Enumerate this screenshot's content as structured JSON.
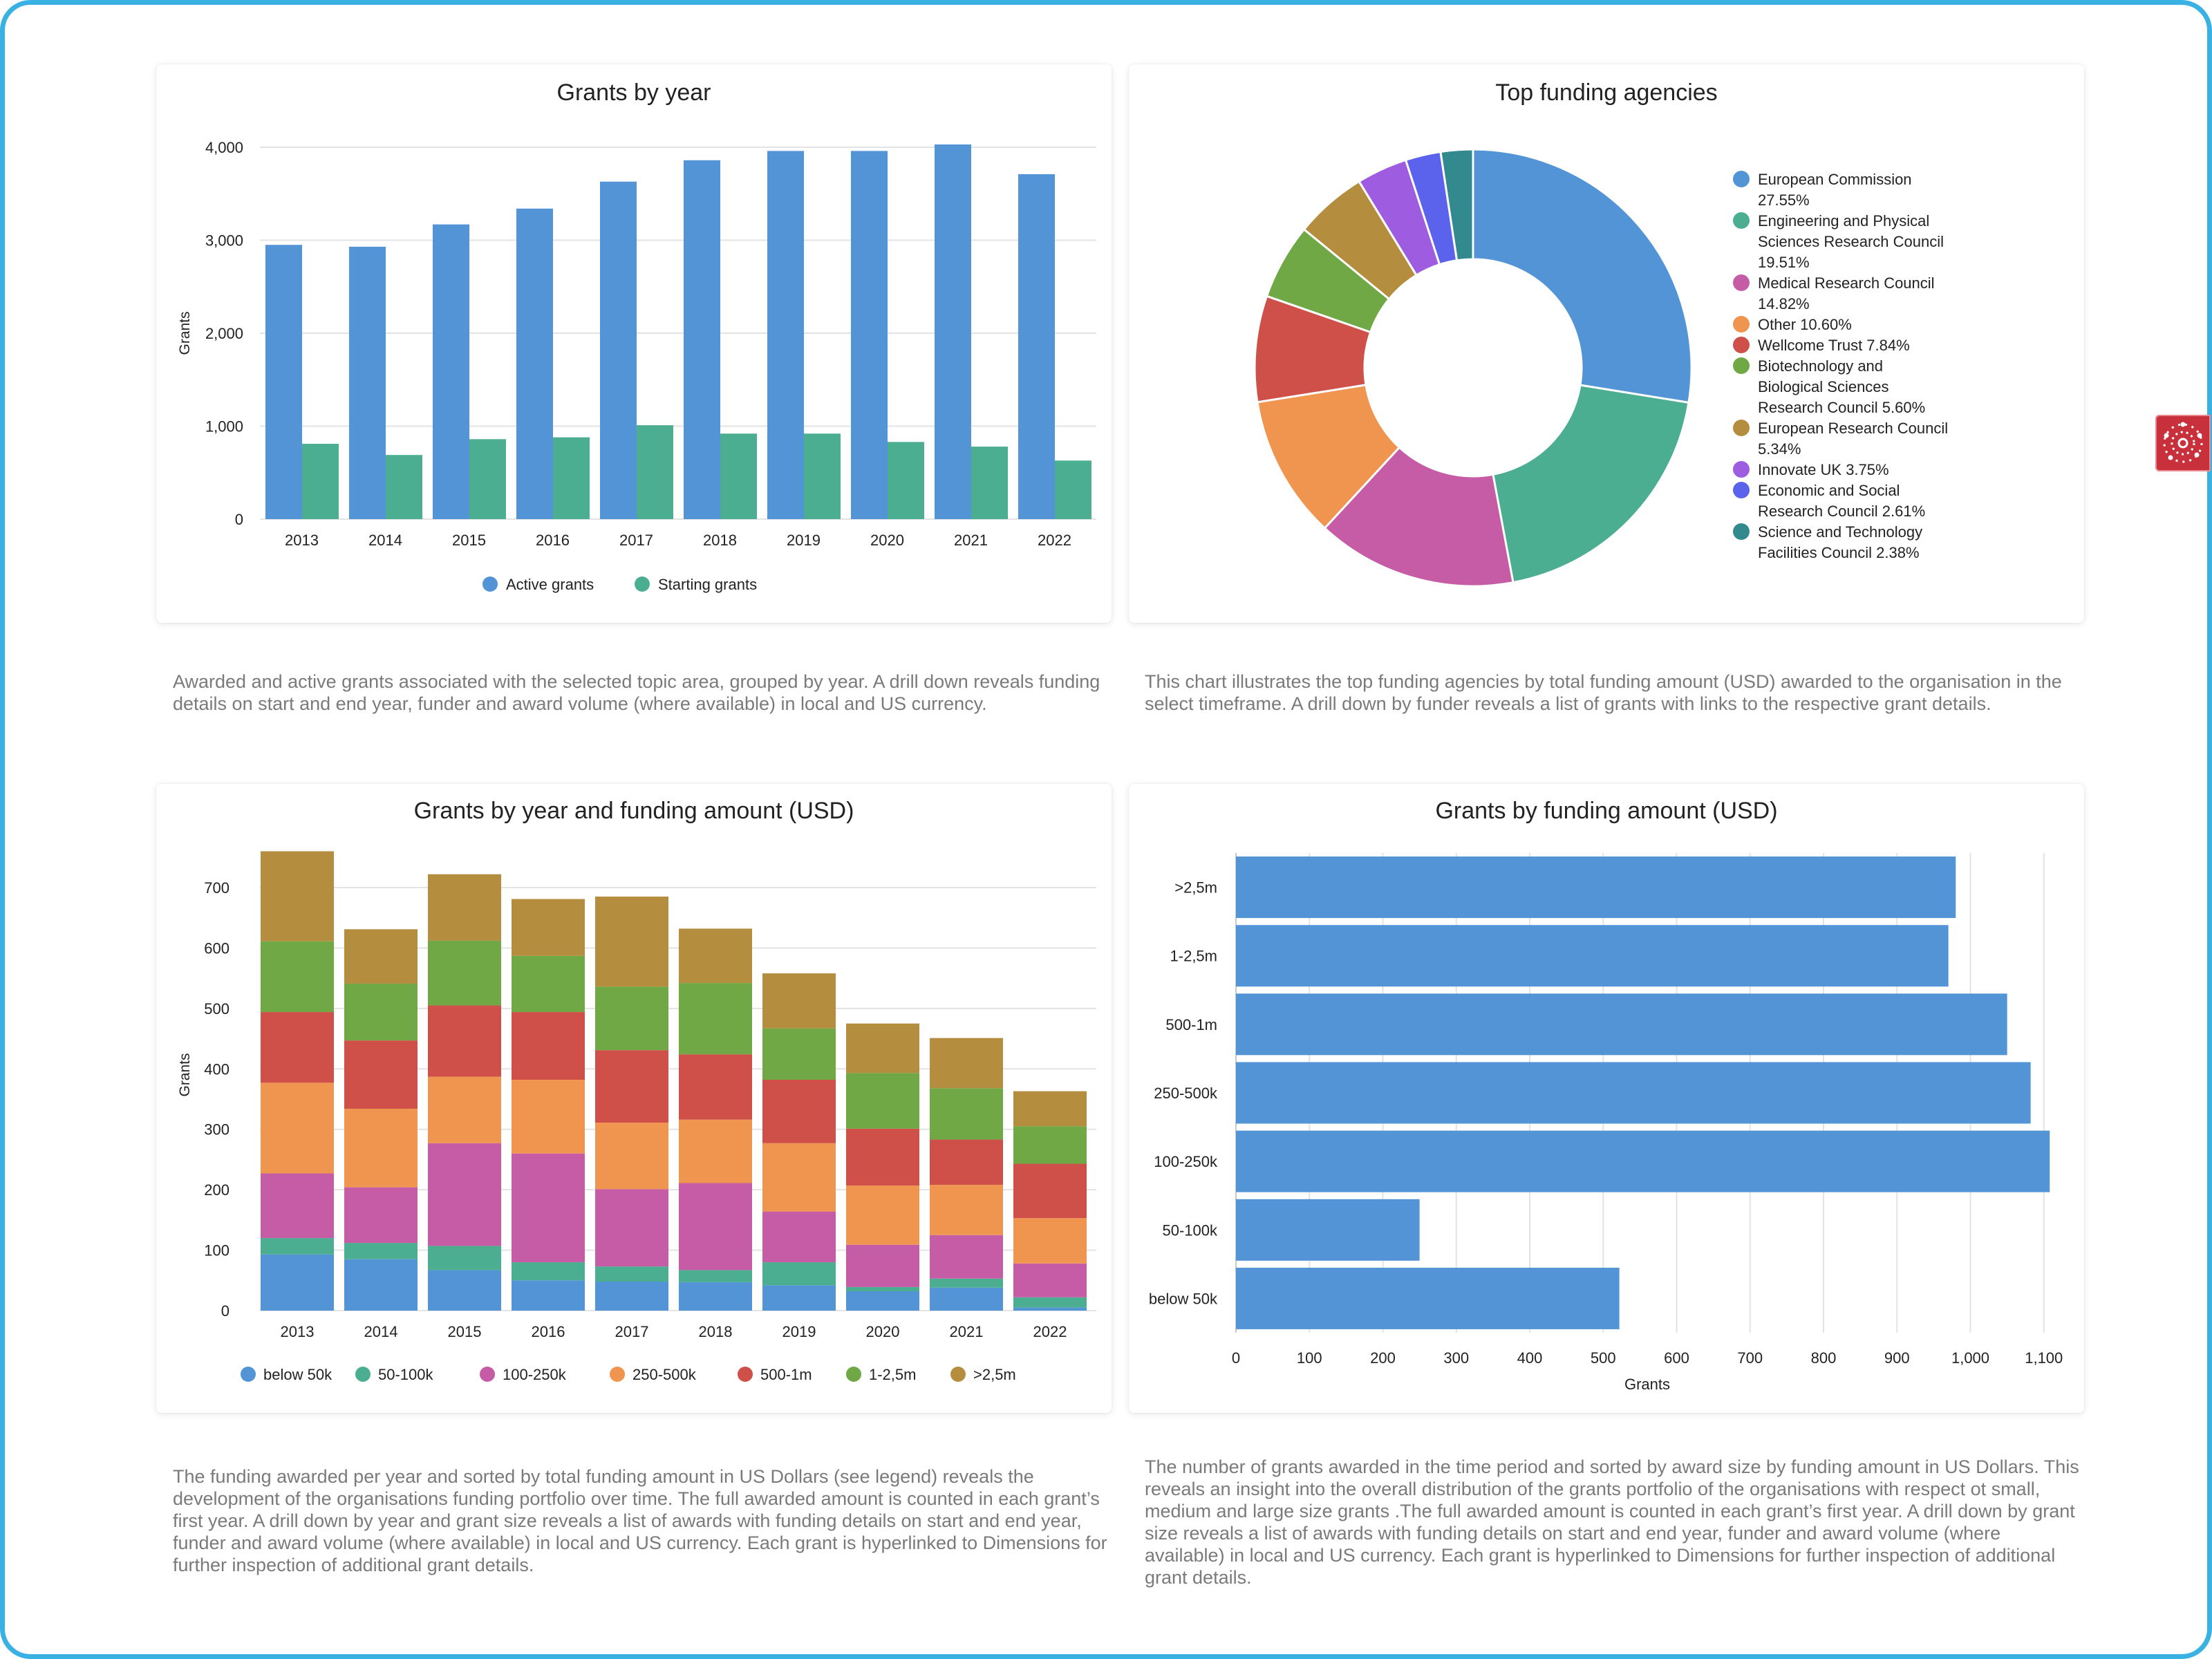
{
  "colors": {
    "blue": "#5294d6",
    "teal": "#4cae91",
    "magenta": "#c65ca5",
    "orange": "#ef9550",
    "red": "#cf5049",
    "green": "#6fa845",
    "brown": "#b48d3f",
    "purple": "#9e5de0",
    "indigo": "#5b62eb",
    "darkteal": "#328a8f",
    "grid": "#e3e3e3",
    "frame": "#39b1e3",
    "tab": "#c8303c"
  },
  "side_tab": {
    "icon": "network-cluster-icon"
  },
  "descriptions": {
    "grants_by_year": "Awarded and active grants associated with the selected topic area, grouped by year. A drill down reveals funding details on start and end year, funder and award volume (where available) in local and US currency.",
    "top_agencies": "This chart illustrates the top funding agencies by total funding amount (USD) awarded to the organisation in the select timeframe. A drill down by funder reveals a list of grants with links to the respective grant details.",
    "year_amount": "The funding awarded per year and sorted by total funding amount in US Dollars (see legend) reveals the development of the organisations funding portfolio over time. The full awarded amount is counted in each grant’s first year. A drill down by year and grant size reveals a list of awards with funding details on start and end year, funder and award volume (where available) in local and US currency. Each grant is hyperlinked to Dimensions for further inspection of additional grant details.",
    "by_amount": "The number of grants awarded in the time period and sorted by award size by funding amount in US Dollars. This reveals an insight into the overall distribution of the grants portfolio of the organisations with respect ot small, medium and large size grants .The full awarded amount is counted in each grant’s first year. A drill down by grant size reveals a list of awards with funding details on start and end year, funder and award volume (where available) in local and US currency. Each grant is hyperlinked to Dimensions for further inspection of additional grant details."
  },
  "chart_data": [
    {
      "type": "bar",
      "title": "Grants by year",
      "xlabel": "",
      "ylabel": "Grants",
      "ylim": [
        0,
        4000
      ],
      "yticks": [
        "0",
        "1,000",
        "2,000",
        "3,000",
        "4,000"
      ],
      "grid": true,
      "legend_position": "bottom",
      "categories": [
        "2013",
        "2014",
        "2015",
        "2016",
        "2017",
        "2018",
        "2019",
        "2020",
        "2021",
        "2022"
      ],
      "series": [
        {
          "name": "Active grants",
          "color": "#5294d6",
          "values": [
            2950,
            2930,
            3170,
            3340,
            3630,
            3860,
            3960,
            3960,
            4030,
            3710
          ]
        },
        {
          "name": "Starting grants",
          "color": "#4cae91",
          "values": [
            810,
            690,
            860,
            880,
            1010,
            920,
            920,
            830,
            780,
            630
          ]
        }
      ]
    },
    {
      "type": "pie",
      "title": "Top funding agencies",
      "donut": true,
      "legend_position": "right",
      "slices": [
        {
          "label": "European Commission 27.55%",
          "value": 27.55,
          "color": "#5294d6"
        },
        {
          "label": "Engineering and Physical Sciences Research Council 19.51%",
          "value": 19.51,
          "color": "#4cae91"
        },
        {
          "label": "Medical Research Council 14.82%",
          "value": 14.82,
          "color": "#c65ca5"
        },
        {
          "label": "Other 10.60%",
          "value": 10.6,
          "color": "#ef9550"
        },
        {
          "label": "Wellcome Trust 7.84%",
          "value": 7.84,
          "color": "#cf5049"
        },
        {
          "label": "Biotechnology and Biological Sciences Research Council 5.60%",
          "value": 5.6,
          "color": "#6fa845"
        },
        {
          "label": "European Research Council 5.34%",
          "value": 5.34,
          "color": "#b48d3f"
        },
        {
          "label": "Innovate UK 3.75%",
          "value": 3.75,
          "color": "#9e5de0"
        },
        {
          "label": "Economic and Social Research Council 2.61%",
          "value": 2.61,
          "color": "#5b62eb"
        },
        {
          "label": "Science and Technology Facilities Council 2.38%",
          "value": 2.38,
          "color": "#328a8f"
        }
      ],
      "legend_lines": [
        [
          "European Commission",
          "27.55%"
        ],
        [
          "Engineering and Physical",
          "Sciences Research Council",
          "19.51%"
        ],
        [
          "Medical Research Council",
          "14.82%"
        ],
        [
          "Other 10.60%"
        ],
        [
          "Wellcome Trust 7.84%"
        ],
        [
          "Biotechnology and",
          "Biological Sciences",
          "Research Council 5.60%"
        ],
        [
          "European Research Council",
          "5.34%"
        ],
        [
          "Innovate UK 3.75%"
        ],
        [
          "Economic and Social",
          "Research Council 2.61%"
        ],
        [
          "Science and Technology",
          "Facilities Council 2.38%"
        ]
      ]
    },
    {
      "type": "bar",
      "stacked": true,
      "title": "Grants by year and funding amount (USD)",
      "xlabel": "",
      "ylabel": "Grants",
      "ylim": [
        0,
        780
      ],
      "yticks": [
        "0",
        "100",
        "200",
        "300",
        "400",
        "500",
        "600",
        "700"
      ],
      "grid": true,
      "legend_position": "bottom",
      "categories": [
        "2013",
        "2014",
        "2015",
        "2016",
        "2017",
        "2018",
        "2019",
        "2020",
        "2021",
        "2022"
      ],
      "series": [
        {
          "name": "below 50k",
          "color": "#5294d6",
          "values": [
            93,
            85,
            67,
            50,
            48,
            47,
            42,
            32,
            38,
            5
          ]
        },
        {
          "name": "50-100k",
          "color": "#4cae91",
          "values": [
            27,
            27,
            40,
            30,
            25,
            20,
            38,
            7,
            15,
            17
          ]
        },
        {
          "name": "100-250k",
          "color": "#c65ca5",
          "values": [
            107,
            92,
            170,
            180,
            128,
            144,
            84,
            70,
            72,
            56
          ]
        },
        {
          "name": "250-500k",
          "color": "#ef9550",
          "values": [
            150,
            130,
            110,
            122,
            110,
            105,
            113,
            98,
            83,
            75
          ]
        },
        {
          "name": "500-1m",
          "color": "#cf5049",
          "values": [
            117,
            113,
            118,
            112,
            120,
            108,
            105,
            94,
            75,
            90
          ]
        },
        {
          "name": "1-2,5m",
          "color": "#6fa845",
          "values": [
            117,
            94,
            107,
            93,
            105,
            118,
            85,
            92,
            85,
            62
          ]
        },
        {
          "name": ">2,5m",
          "color": "#b48d3f",
          "values": [
            149,
            90,
            110,
            94,
            149,
            90,
            91,
            82,
            83,
            58
          ]
        }
      ]
    },
    {
      "type": "bar",
      "orientation": "horizontal",
      "title": "Grants by funding amount (USD)",
      "xlabel": "Grants",
      "ylabel": "",
      "xlim": [
        0,
        1120
      ],
      "xticks": [
        "0",
        "100",
        "200",
        "300",
        "400",
        "500",
        "600",
        "700",
        "800",
        "900",
        "1,000",
        "1,100"
      ],
      "grid": true,
      "categories": [
        ">2,5m",
        "1-2,5m",
        "500-1m",
        "250-500k",
        "100-250k",
        "50-100k",
        "below 50k"
      ],
      "values": [
        980,
        970,
        1050,
        1082,
        1108,
        250,
        522
      ],
      "color": "#5294d6"
    }
  ]
}
